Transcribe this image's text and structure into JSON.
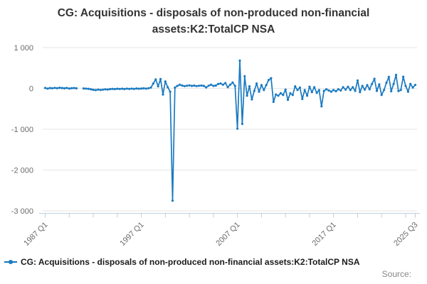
{
  "title": {
    "line1": "CG: Acquisitions - disposals of non-produced non-financial",
    "line2": "assets:K2:TotalCP NSA"
  },
  "legend": {
    "label": "CG: Acquisitions - disposals of non-produced non-financial assets:K2:TotalCP NSA"
  },
  "source_label": "Source:",
  "colors": {
    "series": "#1b7ac1",
    "grid": "#e6e6e6",
    "axis": "#c0cfdc",
    "tick_text": "#6b6b6b"
  },
  "chart_data": {
    "type": "line",
    "title": "CG: Acquisitions - disposals of non-produced non-financial assets:K2:TotalCP NSA",
    "series_name": "CG: Acquisitions - disposals of non-produced non-financial assets:K2:TotalCP NSA",
    "frequency": "quarterly",
    "x_start": "1987 Q1",
    "x_end": "2025 Q3",
    "ylim": [
      -3000,
      1000
    ],
    "grid": true,
    "legend_position": "bottom-left",
    "y_ticks": [
      {
        "value": 1000,
        "label": "1 000"
      },
      {
        "value": 0,
        "label": "0"
      },
      {
        "value": -1000,
        "label": "-1 000"
      },
      {
        "value": -2000,
        "label": "-2 000"
      },
      {
        "value": -3000,
        "label": "-3 000"
      }
    ],
    "x_ticks": [
      {
        "index": 0,
        "label": "1987 Q1"
      },
      {
        "index": 40,
        "label": "1997 Q1"
      },
      {
        "index": 80,
        "label": "2007 Q1"
      },
      {
        "index": 120,
        "label": "2017 Q1"
      },
      {
        "index": 154,
        "label": "2025 Q3"
      }
    ],
    "values": [
      10,
      -5,
      8,
      3,
      12,
      6,
      15,
      8,
      2,
      10,
      -3,
      6,
      8,
      2,
      null,
      null,
      -2,
      -6,
      -10,
      -20,
      -35,
      -42,
      -30,
      -38,
      -32,
      -22,
      -28,
      -18,
      -12,
      -18,
      -8,
      -14,
      -8,
      -15,
      -5,
      -12,
      -6,
      -12,
      -2,
      -8,
      -4,
      2,
      -6,
      4,
      20,
      120,
      220,
      50,
      230,
      -150,
      170,
      30,
      -80,
      -2750,
      20,
      60,
      90,
      70,
      55,
      65,
      75,
      60,
      70,
      55,
      65,
      70,
      60,
      25,
      65,
      90,
      60,
      70,
      110,
      120,
      90,
      130,
      30,
      90,
      145,
      60,
      -985,
      680,
      -870,
      300,
      -180,
      50,
      -270,
      -60,
      120,
      -80,
      80,
      -40,
      80,
      205,
      250,
      -330,
      -150,
      -180,
      -120,
      -160,
      -30,
      -280,
      -120,
      -160,
      50,
      -40,
      20,
      -260,
      -40,
      -180,
      40,
      -90,
      30,
      -110,
      -40,
      -440,
      -60,
      -20,
      -50,
      -80,
      -40,
      -70,
      -20,
      -50,
      30,
      -30,
      40,
      -40,
      30,
      -60,
      195,
      -90,
      60,
      -30,
      80,
      -20,
      110,
      235,
      -60,
      100,
      -160,
      -40,
      140,
      280,
      -70,
      110,
      330,
      -66,
      -40,
      285,
      60,
      -80,
      110,
      20,
      85
    ]
  }
}
